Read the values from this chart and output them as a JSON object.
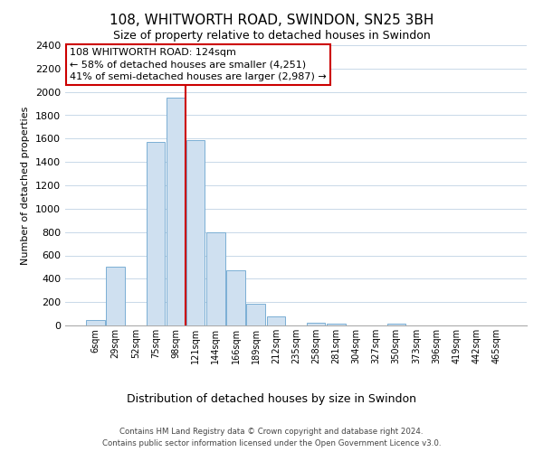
{
  "title": "108, WHITWORTH ROAD, SWINDON, SN25 3BH",
  "subtitle": "Size of property relative to detached houses in Swindon",
  "xlabel": "Distribution of detached houses by size in Swindon",
  "ylabel": "Number of detached properties",
  "bar_labels": [
    "6sqm",
    "29sqm",
    "52sqm",
    "75sqm",
    "98sqm",
    "121sqm",
    "144sqm",
    "166sqm",
    "189sqm",
    "212sqm",
    "235sqm",
    "258sqm",
    "281sqm",
    "304sqm",
    "327sqm",
    "350sqm",
    "373sqm",
    "396sqm",
    "419sqm",
    "442sqm",
    "465sqm"
  ],
  "bar_heights": [
    50,
    500,
    0,
    1570,
    1950,
    1590,
    800,
    475,
    185,
    75,
    0,
    25,
    15,
    0,
    0,
    15,
    0,
    0,
    0,
    0,
    0
  ],
  "bar_color": "#cfe0f0",
  "bar_edge_color": "#7bafd4",
  "property_line_color": "#cc0000",
  "property_line_bar_index": 4,
  "annotation_title": "108 WHITWORTH ROAD: 124sqm",
  "annotation_line1": "← 58% of detached houses are smaller (4,251)",
  "annotation_line2": "41% of semi-detached houses are larger (2,987) →",
  "ylim": [
    0,
    2400
  ],
  "yticks": [
    0,
    200,
    400,
    600,
    800,
    1000,
    1200,
    1400,
    1600,
    1800,
    2000,
    2200,
    2400
  ],
  "footer_line1": "Contains HM Land Registry data © Crown copyright and database right 2024.",
  "footer_line2": "Contains public sector information licensed under the Open Government Licence v3.0.",
  "background_color": "#ffffff",
  "grid_color": "#c8d8e8"
}
